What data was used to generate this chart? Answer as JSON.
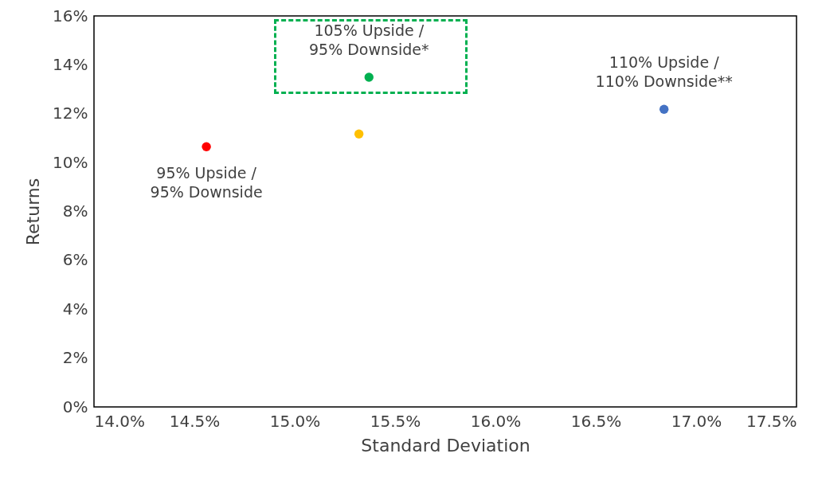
{
  "chart_data": {
    "type": "scatter",
    "xlabel": "Standard Deviation",
    "ylabel": "Returns",
    "xlim": [
      14,
      17.5
    ],
    "xticks": [
      {
        "value": 14,
        "label": "14.0%"
      },
      {
        "value": 14.5,
        "label": "14.5%"
      },
      {
        "value": 15,
        "label": "15.0%"
      },
      {
        "value": 15.5,
        "label": "15.5%"
      },
      {
        "value": 16,
        "label": "16.0%"
      },
      {
        "value": 16.5,
        "label": "16.5%"
      },
      {
        "value": 17,
        "label": "17.0%"
      },
      {
        "value": 17.5,
        "label": "17.5%"
      }
    ],
    "ylim": [
      0,
      16
    ],
    "yticks": [
      {
        "value": 0,
        "label": "0%"
      },
      {
        "value": 2,
        "label": "2%"
      },
      {
        "value": 4,
        "label": "4%"
      },
      {
        "value": 6,
        "label": "6%"
      },
      {
        "value": 8,
        "label": "8%"
      },
      {
        "value": 10,
        "label": "10%"
      },
      {
        "value": 12,
        "label": "12%"
      },
      {
        "value": 14,
        "label": "14%"
      },
      {
        "value": 16,
        "label": "16%"
      }
    ],
    "grid": false,
    "marker": "circle",
    "series": [
      {
        "name": "95% Upside / 95% Downside",
        "color": "#ff0000",
        "x": [
          14.56
        ],
        "values": [
          10.65
        ]
      },
      {
        "color": "#ffc000",
        "x": [
          15.32
        ],
        "values": [
          11.17
        ]
      },
      {
        "name": "105% Upside / 95% Downside*",
        "color": "#00b050",
        "x": [
          15.37
        ],
        "values": [
          13.49
        ]
      },
      {
        "name": "110% Upside / 110% Downside**",
        "color": "#4472c4",
        "x": [
          16.84
        ],
        "values": [
          12.18
        ]
      }
    ]
  }
}
